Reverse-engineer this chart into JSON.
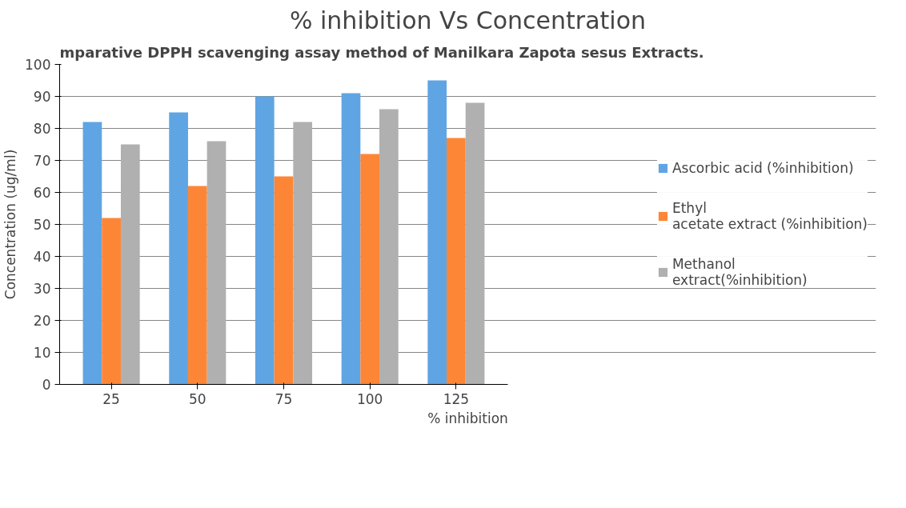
{
  "chart_data": {
    "type": "bar",
    "title": "% inhibition Vs Concentration",
    "annotations": [
      "mparative DPPH scavenging assay method of Manilkara Zapota sesus Extracts."
    ],
    "xlabel": "% inhibition",
    "ylabel": "Concentration (ug/ml)",
    "categories": [
      "25",
      "50",
      "75",
      "100",
      "125"
    ],
    "series": [
      {
        "name": "Ascorbic acid (%inhibition)",
        "color": "#5fa5e3",
        "values": [
          82,
          85,
          90,
          91,
          95
        ]
      },
      {
        "name": "Ethyl\nacetate extract (%inhibition)",
        "color": "#fd8636",
        "values": [
          52,
          62,
          65,
          72,
          77
        ]
      },
      {
        "name": "Methanol\nextract(%inhibition)",
        "color": "#b0b0b0",
        "values": [
          75,
          76,
          82,
          86,
          88
        ]
      }
    ],
    "ylim": [
      0,
      100
    ],
    "yticks": [
      0,
      10,
      20,
      30,
      40,
      50,
      60,
      70,
      80,
      90,
      100
    ],
    "grid": "y",
    "legend": "right"
  }
}
